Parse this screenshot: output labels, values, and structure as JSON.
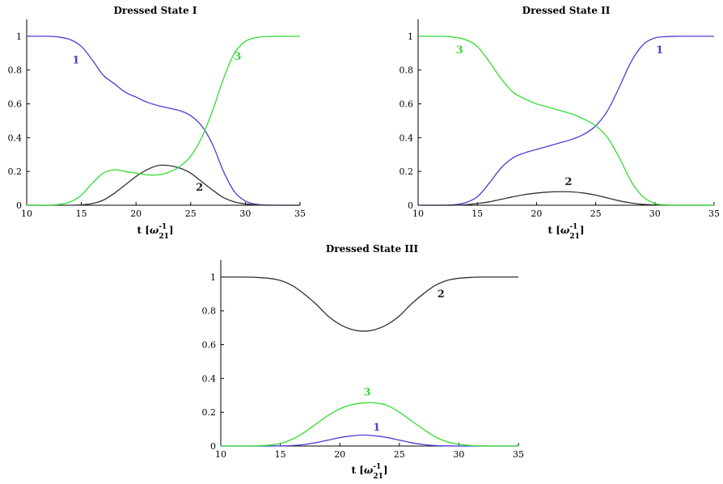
{
  "chart_data": [
    {
      "type": "line",
      "title": "Dressed State I",
      "xlabel": "t",
      "xlabel_unit": "[ω⁻¹₂₁]",
      "xlabel_unit_base": "ω",
      "xlabel_unit_sup": "-1",
      "xlabel_unit_sub": "21",
      "xlim": [
        10,
        35
      ],
      "ylim": [
        0,
        1.1
      ],
      "xticks": [
        "10",
        "15",
        "20",
        "25",
        "30",
        "35"
      ],
      "yticks": [
        "0",
        "0.2",
        "0.4",
        "0.6",
        "0.8",
        "1"
      ],
      "grid": false,
      "series": [
        {
          "name": "1",
          "color": "#4b3fd4",
          "x": [
            10,
            11,
            12,
            13,
            14,
            15,
            16,
            17,
            18,
            19,
            20,
            21,
            22,
            23,
            24,
            25,
            26,
            27,
            28,
            29,
            30,
            31,
            32,
            33,
            34,
            35
          ],
          "y": [
            1.0,
            1.0,
            1.0,
            0.995,
            0.98,
            0.94,
            0.86,
            0.77,
            0.72,
            0.67,
            0.64,
            0.61,
            0.59,
            0.575,
            0.56,
            0.53,
            0.47,
            0.36,
            0.2,
            0.08,
            0.025,
            0.006,
            0.001,
            0,
            0,
            0
          ]
        },
        {
          "name": "2",
          "color": "#333333",
          "x": [
            10,
            11,
            12,
            13,
            14,
            15,
            16,
            17,
            18,
            19,
            20,
            21,
            22,
            23,
            24,
            25,
            26,
            27,
            28,
            29,
            30,
            31,
            32,
            33,
            34,
            35
          ],
          "y": [
            0,
            0,
            0,
            0,
            0,
            0.002,
            0.01,
            0.03,
            0.07,
            0.12,
            0.17,
            0.21,
            0.235,
            0.235,
            0.22,
            0.19,
            0.14,
            0.09,
            0.045,
            0.02,
            0.008,
            0.002,
            0,
            0,
            0,
            0
          ]
        },
        {
          "name": "3",
          "color": "#33dd33",
          "x": [
            10,
            11,
            12,
            13,
            14,
            15,
            16,
            17,
            18,
            19,
            20,
            21,
            22,
            23,
            24,
            25,
            26,
            27,
            28,
            29,
            30,
            31,
            32,
            33,
            34,
            35
          ],
          "y": [
            0,
            0,
            0,
            0.005,
            0.02,
            0.06,
            0.13,
            0.19,
            0.21,
            0.2,
            0.19,
            0.18,
            0.18,
            0.195,
            0.23,
            0.29,
            0.4,
            0.56,
            0.75,
            0.9,
            0.97,
            0.993,
            0.999,
            1.0,
            1.0,
            1.0
          ]
        }
      ],
      "annotations": [
        {
          "text": "1",
          "x": 14.5,
          "y": 0.84,
          "color": "#4b3fd4"
        },
        {
          "text": "2",
          "x": 25.8,
          "y": 0.085,
          "color": "#222222"
        },
        {
          "text": "3",
          "x": 29.3,
          "y": 0.86,
          "color": "#33dd33"
        }
      ]
    },
    {
      "type": "line",
      "title": "Dressed State II",
      "xlabel": "t",
      "xlabel_unit": "[ω⁻¹₂₁]",
      "xlabel_unit_base": "ω",
      "xlabel_unit_sup": "-1",
      "xlabel_unit_sub": "21",
      "xlim": [
        10,
        35
      ],
      "ylim": [
        0,
        1.1
      ],
      "xticks": [
        "10",
        "15",
        "20",
        "25",
        "30",
        "35"
      ],
      "yticks": [
        "0",
        "0.2",
        "0.4",
        "0.6",
        "0.8",
        "1"
      ],
      "grid": false,
      "series": [
        {
          "name": "1",
          "color": "#4b3fd4",
          "x": [
            10,
            11,
            12,
            13,
            14,
            15,
            16,
            17,
            18,
            19,
            20,
            21,
            22,
            23,
            24,
            25,
            26,
            27,
            28,
            29,
            30,
            31,
            32,
            33,
            34,
            35
          ],
          "y": [
            0,
            0,
            0,
            0.003,
            0.015,
            0.05,
            0.13,
            0.22,
            0.28,
            0.31,
            0.33,
            0.35,
            0.37,
            0.39,
            0.42,
            0.47,
            0.56,
            0.7,
            0.85,
            0.95,
            0.99,
            0.998,
            1.0,
            1.0,
            1.0,
            1.0
          ]
        },
        {
          "name": "2",
          "color": "#333333",
          "x": [
            10,
            11,
            12,
            13,
            14,
            15,
            16,
            17,
            18,
            19,
            20,
            21,
            22,
            23,
            24,
            25,
            26,
            27,
            28,
            29,
            30,
            31,
            32,
            33,
            34,
            35
          ],
          "y": [
            0,
            0,
            0,
            0,
            0.003,
            0.01,
            0.02,
            0.035,
            0.05,
            0.063,
            0.072,
            0.078,
            0.08,
            0.079,
            0.072,
            0.06,
            0.043,
            0.026,
            0.013,
            0.005,
            0.002,
            0,
            0,
            0,
            0,
            0
          ]
        },
        {
          "name": "3",
          "color": "#33dd33",
          "x": [
            10,
            11,
            12,
            13,
            14,
            15,
            16,
            17,
            18,
            19,
            20,
            21,
            22,
            23,
            24,
            25,
            26,
            27,
            28,
            29,
            30,
            31,
            32,
            33,
            34,
            35
          ],
          "y": [
            1.0,
            1.0,
            1.0,
            0.995,
            0.98,
            0.94,
            0.85,
            0.75,
            0.67,
            0.63,
            0.6,
            0.58,
            0.56,
            0.54,
            0.51,
            0.47,
            0.4,
            0.28,
            0.14,
            0.05,
            0.01,
            0.002,
            0,
            0,
            0,
            0
          ]
        }
      ],
      "annotations": [
        {
          "text": "3",
          "x": 13.5,
          "y": 0.9,
          "color": "#33dd33"
        },
        {
          "text": "2",
          "x": 22.7,
          "y": 0.12,
          "color": "#222222"
        },
        {
          "text": "1",
          "x": 30.4,
          "y": 0.9,
          "color": "#4b3fd4"
        }
      ]
    },
    {
      "type": "line",
      "title": "Dressed State III",
      "xlabel": "t",
      "xlabel_unit": "[ω⁻¹₂₁]",
      "xlabel_unit_base": "ω",
      "xlabel_unit_sup": "-1",
      "xlabel_unit_sub": "21",
      "xlim": [
        10,
        35
      ],
      "ylim": [
        0,
        1.1
      ],
      "xticks": [
        "10",
        "15",
        "20",
        "25",
        "30",
        "35"
      ],
      "yticks": [
        "0",
        "0.2",
        "0.4",
        "0.6",
        "0.8",
        "1"
      ],
      "grid": false,
      "series": [
        {
          "name": "1",
          "color": "#4b3fd4",
          "x": [
            10,
            11,
            12,
            13,
            14,
            15,
            16,
            17,
            18,
            19,
            20,
            21,
            22,
            23,
            24,
            25,
            26,
            27,
            28,
            29,
            30,
            31,
            32,
            33,
            34,
            35
          ],
          "y": [
            0,
            0,
            0,
            0,
            0,
            0.001,
            0.003,
            0.009,
            0.02,
            0.035,
            0.05,
            0.06,
            0.065,
            0.06,
            0.05,
            0.035,
            0.02,
            0.009,
            0.003,
            0.001,
            0,
            0,
            0,
            0,
            0,
            0
          ]
        },
        {
          "name": "2",
          "color": "#333333",
          "x": [
            10,
            11,
            12,
            13,
            14,
            15,
            16,
            17,
            18,
            19,
            20,
            21,
            22,
            23,
            24,
            25,
            26,
            27,
            28,
            29,
            30,
            31,
            32,
            33,
            34,
            35
          ],
          "y": [
            1.0,
            1.0,
            1.0,
            0.998,
            0.993,
            0.98,
            0.95,
            0.9,
            0.84,
            0.77,
            0.72,
            0.69,
            0.68,
            0.69,
            0.72,
            0.77,
            0.84,
            0.9,
            0.95,
            0.98,
            0.993,
            0.998,
            1.0,
            1.0,
            1.0,
            1.0
          ]
        },
        {
          "name": "3",
          "color": "#33dd33",
          "x": [
            10,
            11,
            12,
            13,
            14,
            15,
            16,
            17,
            18,
            19,
            20,
            21,
            22,
            23,
            24,
            25,
            26,
            27,
            28,
            29,
            30,
            31,
            32,
            33,
            34,
            35
          ],
          "y": [
            0,
            0,
            0,
            0.001,
            0.005,
            0.015,
            0.04,
            0.08,
            0.13,
            0.18,
            0.22,
            0.245,
            0.255,
            0.255,
            0.24,
            0.2,
            0.15,
            0.1,
            0.055,
            0.025,
            0.01,
            0.003,
            0.001,
            0,
            0,
            0
          ]
        }
      ],
      "annotations": [
        {
          "text": "2",
          "x": 28.5,
          "y": 0.88,
          "color": "#222222"
        },
        {
          "text": "3",
          "x": 22.3,
          "y": 0.3,
          "color": "#33dd33"
        },
        {
          "text": "1",
          "x": 23.1,
          "y": 0.09,
          "color": "#4b3fd4"
        }
      ]
    }
  ]
}
